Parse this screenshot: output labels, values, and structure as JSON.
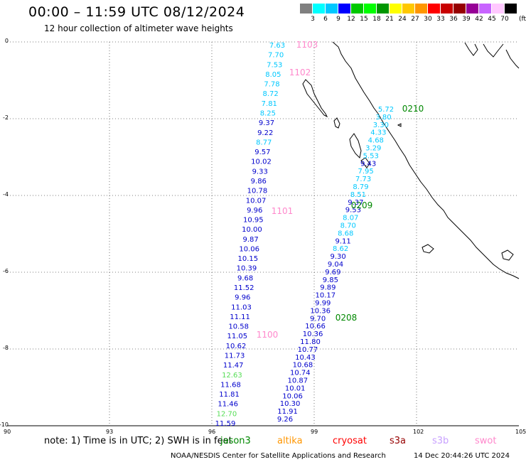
{
  "header": {
    "title": "00:00 – 11:59 UTC 08/12/2024",
    "subtitle": "12 hour collection of altimeter wave heights"
  },
  "legend": {
    "unit": "(ft)",
    "colors": [
      "#808080",
      "#00ffff",
      "#00c8ff",
      "#0000ff",
      "#00c800",
      "#00ff00",
      "#009600",
      "#ffff00",
      "#ffc800",
      "#ff9600",
      "#ff0000",
      "#c80000",
      "#960000",
      "#960096",
      "#c864ff",
      "#ffc8ff",
      "#000000"
    ],
    "labels": [
      "3",
      "6",
      "9",
      "12",
      "15",
      "18",
      "21",
      "24",
      "27",
      "30",
      "33",
      "36",
      "39",
      "42",
      "45",
      "70"
    ]
  },
  "axes": {
    "x_ticks": [
      "90",
      "93",
      "96",
      "99",
      "102",
      "105"
    ],
    "y_ticks": [
      "0",
      "-2",
      "-4",
      "-6",
      "-8",
      "-10"
    ]
  },
  "passes": [
    {
      "id": "1103",
      "color": "#ff88cc"
    },
    {
      "id": "1102",
      "color": "#ff88cc"
    },
    {
      "id": "1101",
      "color": "#ff88cc"
    },
    {
      "id": "1100",
      "color": "#ff88cc"
    },
    {
      "id": "0210",
      "color": "#008800"
    },
    {
      "id": "0209",
      "color": "#008800"
    },
    {
      "id": "0208",
      "color": "#008800"
    }
  ],
  "track_a": [
    {
      "v": "7.63",
      "c": "#00c8ff"
    },
    {
      "v": "7.70",
      "c": "#00c8ff"
    },
    {
      "v": "7.53",
      "c": "#00c8ff"
    },
    {
      "v": "8.05",
      "c": "#00c8ff"
    },
    {
      "v": "7.78",
      "c": "#00c8ff"
    },
    {
      "v": "8.72",
      "c": "#00c8ff"
    },
    {
      "v": "7.81",
      "c": "#00c8ff"
    },
    {
      "v": "8.25",
      "c": "#00c8ff"
    },
    {
      "v": "9.37",
      "c": "#0000cc"
    },
    {
      "v": "9.22",
      "c": "#0000cc"
    },
    {
      "v": "8.77",
      "c": "#00c8ff"
    },
    {
      "v": "9.57",
      "c": "#0000cc"
    },
    {
      "v": "10.02",
      "c": "#0000cc"
    },
    {
      "v": "9.33",
      "c": "#0000cc"
    },
    {
      "v": "9.86",
      "c": "#0000cc"
    },
    {
      "v": "10.78",
      "c": "#0000cc"
    },
    {
      "v": "10.07",
      "c": "#0000cc"
    },
    {
      "v": "9.96",
      "c": "#0000cc"
    },
    {
      "v": "10.95",
      "c": "#0000cc"
    },
    {
      "v": "10.00",
      "c": "#0000cc"
    },
    {
      "v": "9.87",
      "c": "#0000cc"
    },
    {
      "v": "10.06",
      "c": "#0000cc"
    },
    {
      "v": "10.15",
      "c": "#0000cc"
    },
    {
      "v": "10.39",
      "c": "#0000cc"
    },
    {
      "v": "9.68",
      "c": "#0000cc"
    },
    {
      "v": "11.52",
      "c": "#0000cc"
    },
    {
      "v": "9.96",
      "c": "#0000cc"
    },
    {
      "v": "11.03",
      "c": "#0000cc"
    },
    {
      "v": "11.11",
      "c": "#0000cc"
    },
    {
      "v": "10.58",
      "c": "#0000cc"
    },
    {
      "v": "11.05",
      "c": "#0000cc"
    },
    {
      "v": "10.62",
      "c": "#0000cc"
    },
    {
      "v": "11.73",
      "c": "#0000cc"
    },
    {
      "v": "11.47",
      "c": "#0000cc"
    },
    {
      "v": "12.63",
      "c": "#55dd55"
    },
    {
      "v": "11.68",
      "c": "#0000cc"
    },
    {
      "v": "11.81",
      "c": "#0000cc"
    },
    {
      "v": "11.46",
      "c": "#0000cc"
    },
    {
      "v": "12.70",
      "c": "#55dd55"
    },
    {
      "v": "11.59",
      "c": "#0000cc"
    }
  ],
  "track_b": [
    {
      "v": "5.72",
      "c": "#00c8ff"
    },
    {
      "v": "3.80",
      "c": "#00c8ff"
    },
    {
      "v": "3.30",
      "c": "#00c8ff"
    },
    {
      "v": "4.33",
      "c": "#00c8ff"
    },
    {
      "v": "4.68",
      "c": "#00c8ff"
    },
    {
      "v": "3.29",
      "c": "#00c8ff"
    },
    {
      "v": "5.53",
      "c": "#00c8ff"
    },
    {
      "v": "9.43",
      "c": "#0000cc"
    },
    {
      "v": "7.95",
      "c": "#00c8ff"
    },
    {
      "v": "7.73",
      "c": "#00c8ff"
    },
    {
      "v": "8.79",
      "c": "#00c8ff"
    },
    {
      "v": "8.51",
      "c": "#00c8ff"
    },
    {
      "v": "9.37",
      "c": "#0000cc"
    },
    {
      "v": "9.53",
      "c": "#0000cc"
    },
    {
      "v": "8.07",
      "c": "#00c8ff"
    },
    {
      "v": "8.70",
      "c": "#00c8ff"
    },
    {
      "v": "8.68",
      "c": "#00c8ff"
    },
    {
      "v": "9.11",
      "c": "#0000cc"
    },
    {
      "v": "8.62",
      "c": "#00c8ff"
    },
    {
      "v": "9.30",
      "c": "#0000cc"
    },
    {
      "v": "9.04",
      "c": "#0000cc"
    },
    {
      "v": "9.69",
      "c": "#0000cc"
    },
    {
      "v": "9.85",
      "c": "#0000cc"
    },
    {
      "v": "9.89",
      "c": "#0000cc"
    },
    {
      "v": "10.17",
      "c": "#0000cc"
    },
    {
      "v": "9.99",
      "c": "#0000cc"
    },
    {
      "v": "10.36",
      "c": "#0000cc"
    },
    {
      "v": "9.70",
      "c": "#0000cc"
    },
    {
      "v": "10.66",
      "c": "#0000cc"
    },
    {
      "v": "10.36",
      "c": "#0000cc"
    },
    {
      "v": "11.80",
      "c": "#0000cc"
    },
    {
      "v": "10.77",
      "c": "#0000cc"
    },
    {
      "v": "10.43",
      "c": "#0000cc"
    },
    {
      "v": "10.68",
      "c": "#0000cc"
    },
    {
      "v": "10.74",
      "c": "#0000cc"
    },
    {
      "v": "10.87",
      "c": "#0000cc"
    },
    {
      "v": "10.01",
      "c": "#0000cc"
    },
    {
      "v": "10.06",
      "c": "#0000cc"
    },
    {
      "v": "10.30",
      "c": "#0000cc"
    },
    {
      "v": "11.91",
      "c": "#0000cc"
    },
    {
      "v": "9.26",
      "c": "#0000cc"
    }
  ],
  "footer": {
    "note": "note:  1) Time is in UTC;  2) SWH is in feet",
    "missions": [
      {
        "name": "jason3",
        "color": "#008800"
      },
      {
        "name": "altika",
        "color": "#ff9600"
      },
      {
        "name": "cryosat",
        "color": "#ff0000"
      },
      {
        "name": "s3a",
        "color": "#960000"
      },
      {
        "name": "s3b",
        "color": "#c8a0ff"
      },
      {
        "name": "swot",
        "color": "#ff88cc"
      }
    ],
    "credit": "NOAA/NESDIS Center for Satellite Applications and Research",
    "created": "14 Dec 20:44:26 UTC 2024"
  }
}
